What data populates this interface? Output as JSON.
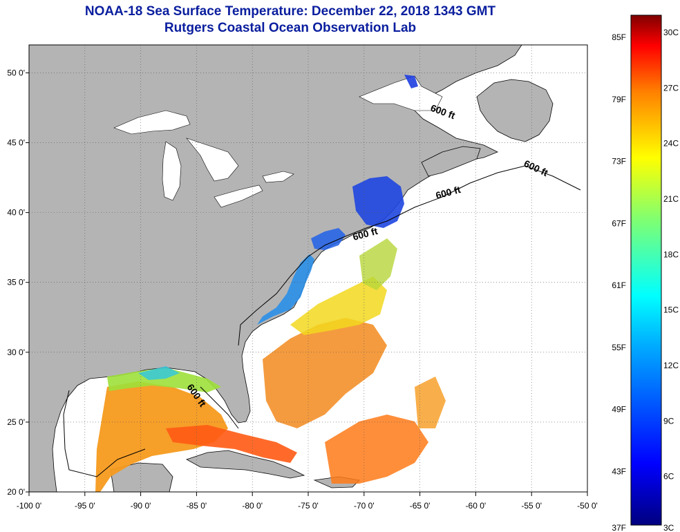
{
  "title": "NOAA-18 Sea Surface Temperature:  December 22, 2018 1343 GMT",
  "subtitle": "Rutgers Coastal Ocean Observation Lab",
  "map": {
    "lon_range": [
      -100,
      -50
    ],
    "lat_range": [
      20,
      52
    ],
    "x_ticks": [
      "-100 0'",
      "-95 0'",
      "-90 0'",
      "-85 0'",
      "-80 0'",
      "-75 0'",
      "-70 0'",
      "-65 0'",
      "-60 0'",
      "-55 0'",
      "-50 0'"
    ],
    "y_ticks": [
      "50 0'",
      "45 0'",
      "40 0'",
      "35 0'",
      "30 0'",
      "25 0'",
      "20 0'"
    ],
    "contour_label": "600 ft",
    "land_color": "#b4b4b4",
    "cloud_color": "#ffffff"
  },
  "colorbar": {
    "fahrenheit": [
      "85F",
      "79F",
      "73F",
      "67F",
      "61F",
      "55F",
      "49F",
      "43F",
      "37F"
    ],
    "celsius": [
      "30C",
      "27C",
      "24C",
      "21C",
      "18C",
      "15C",
      "12C",
      "9C",
      "6C",
      "3C"
    ],
    "colors": [
      "#7f0000",
      "#ff0000",
      "#ff7f00",
      "#ffff00",
      "#7fff7f",
      "#00ffff",
      "#007fff",
      "#0000ff",
      "#00007f"
    ]
  }
}
